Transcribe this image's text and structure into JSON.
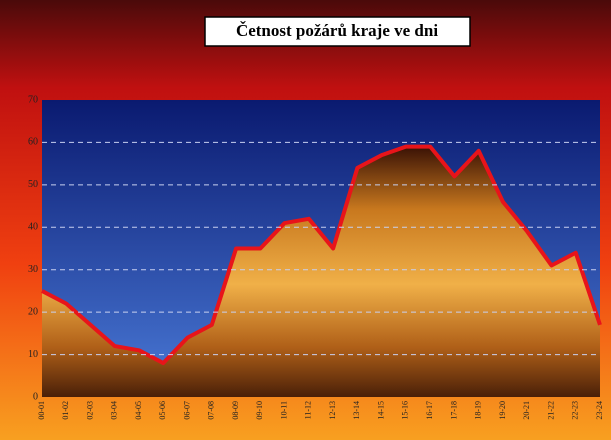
{
  "chart_data": {
    "type": "area",
    "title": "Četnost požárů kraje ve dni",
    "categories": [
      "00-01",
      "01-02",
      "02-03",
      "03-04",
      "04-05",
      "05-06",
      "06-07",
      "07-08",
      "08-09",
      "09-10",
      "10-11",
      "11-12",
      "12-13",
      "13-14",
      "14-15",
      "15-16",
      "16-17",
      "17-18",
      "18-19",
      "19-20",
      "20-21",
      "21-22",
      "22-23",
      "23-24"
    ],
    "values": [
      25,
      22,
      17,
      12,
      11,
      8,
      14,
      17,
      35,
      35,
      41,
      42,
      35,
      54,
      57,
      59,
      59,
      52,
      58,
      46,
      39,
      31,
      34,
      17
    ],
    "color": "#e8141a",
    "ylim": [
      0,
      70
    ],
    "yticks": [
      0,
      10,
      20,
      30,
      40,
      50,
      60,
      70
    ],
    "grid": true
  }
}
